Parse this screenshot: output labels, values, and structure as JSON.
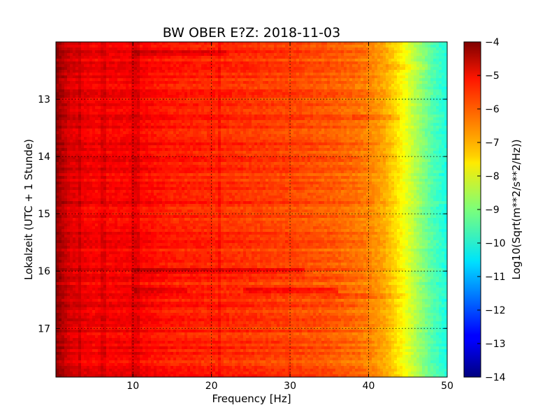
{
  "chart_data": [
    {
      "type": "heatmap",
      "title": "BW OBER E?Z: 2018-11-03",
      "xlabel": "Frequency [Hz]",
      "ylabel": "Lokalzeit (UTC + 1 Stunde)",
      "xlim": [
        0.2,
        50
      ],
      "ylim": [
        12.0,
        17.85
      ],
      "y_inverted": true,
      "x_ticks": [
        10,
        20,
        30,
        40,
        50
      ],
      "x_tick_labels": [
        "10",
        "20",
        "30",
        "40",
        "50"
      ],
      "y_ticks": [
        13,
        14,
        15,
        16,
        17
      ],
      "y_tick_labels": [
        "13",
        "14",
        "15",
        "16",
        "17"
      ],
      "grid": true,
      "colormap": "jet",
      "color_range": [
        -14,
        -4
      ],
      "colorbar_label": "Log10(Sqrt(m**2/s**2/Hz))",
      "colorbar_ticks": [
        -4,
        -5,
        -6,
        -7,
        -8,
        -9,
        -10,
        -11,
        -12,
        -13,
        -14
      ],
      "colorbar_tick_labels": [
        "−4",
        "−5",
        "−6",
        "−7",
        "−8",
        "−9",
        "−10",
        "−11",
        "−12",
        "−13",
        "−14"
      ],
      "frequency_profile": {
        "frequency": [
          0.2,
          1,
          2,
          5,
          10,
          15,
          20,
          25,
          30,
          35,
          38,
          40,
          42,
          44,
          46,
          48,
          50
        ],
        "value": [
          -4.2,
          -4.5,
          -4.9,
          -5.2,
          -5.2,
          -5.5,
          -5.6,
          -5.75,
          -5.9,
          -6.1,
          -6.3,
          -6.5,
          -6.9,
          -7.6,
          -8.5,
          -9.4,
          -10.0
        ]
      },
      "band_events": [
        {
          "time": 16.0,
          "f_start": 10,
          "f_end": 32,
          "offset": 0.5
        },
        {
          "time": 16.33,
          "f_start": 24,
          "f_end": 36,
          "offset": 0.55
        },
        {
          "time": 16.33,
          "f_start": 10,
          "f_end": 17,
          "offset": 0.4
        },
        {
          "time": 12.2,
          "f_start": 10,
          "f_end": 22,
          "offset": 0.35
        },
        {
          "time": 13.3,
          "f_start": 38,
          "f_end": 44,
          "offset": 0.3
        },
        {
          "time": 16.45,
          "f_start": 34,
          "f_end": 45,
          "offset": 0.25
        },
        {
          "time": 12.45,
          "f_start": 42,
          "f_end": 48,
          "offset": 0.3
        }
      ]
    }
  ]
}
